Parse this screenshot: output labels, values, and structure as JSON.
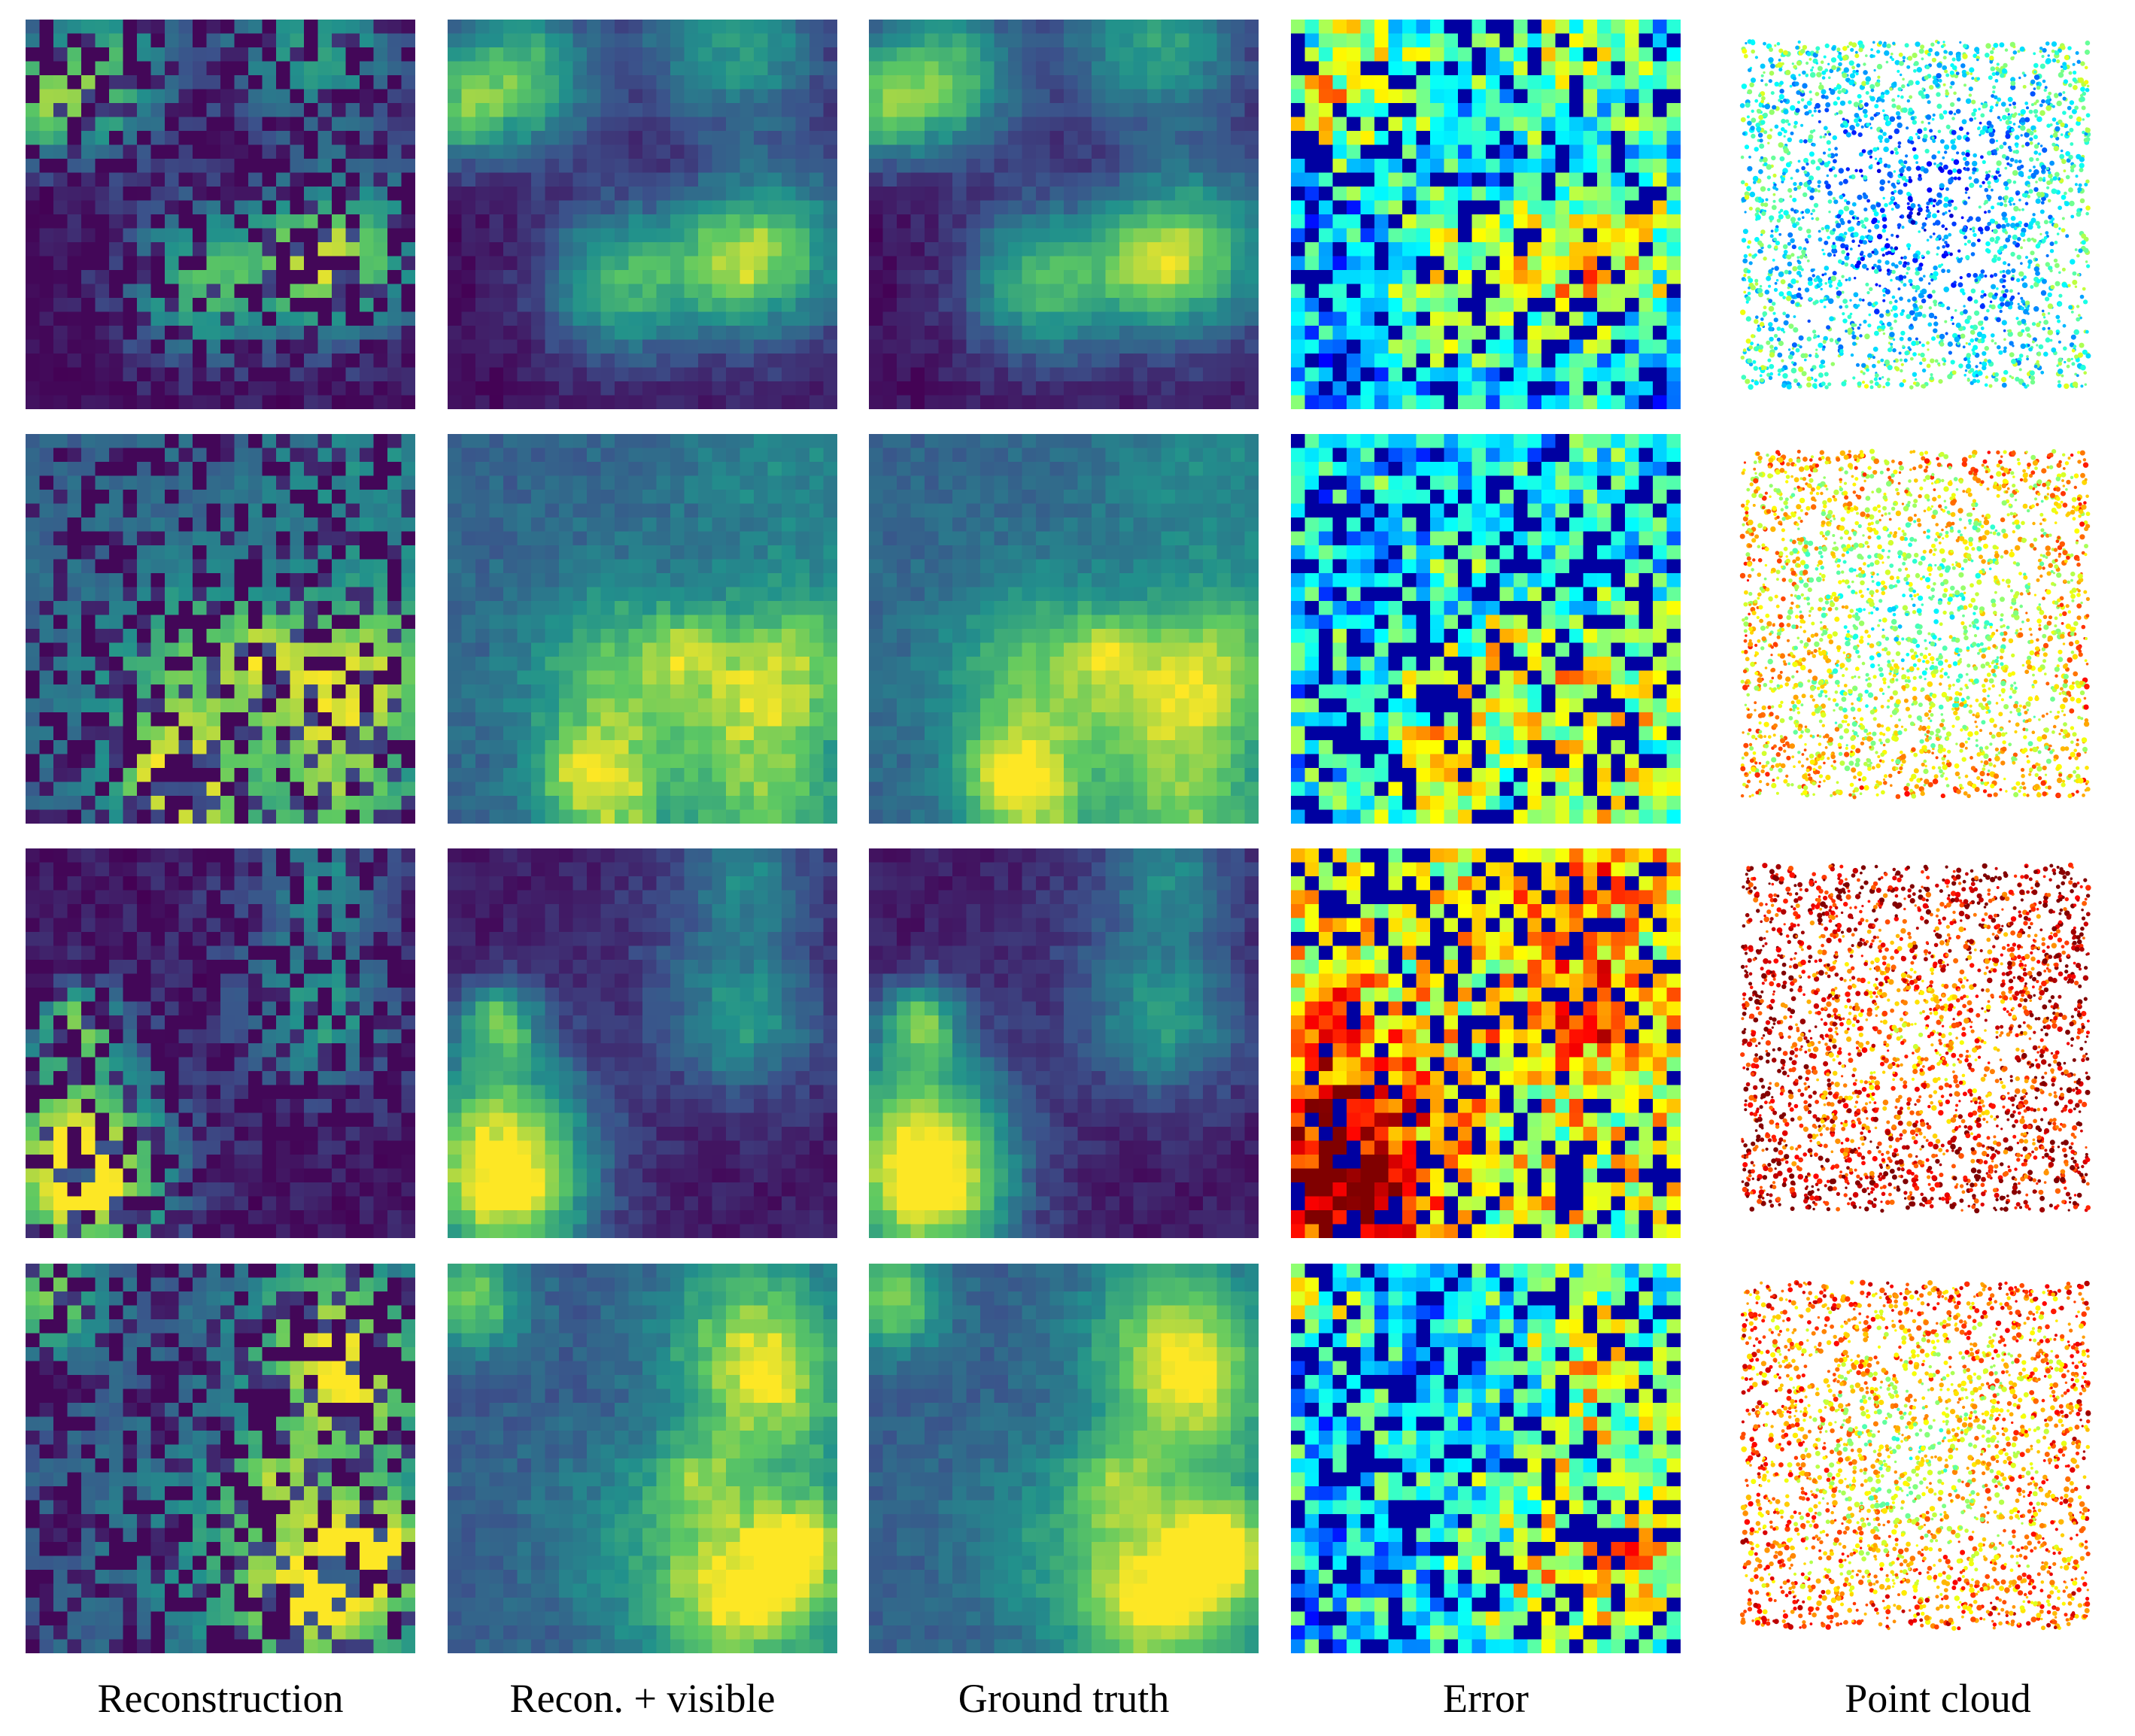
{
  "figure": {
    "columns": [
      {
        "key": "reconstruction",
        "caption": "Reconstruction",
        "colormap": "viridis"
      },
      {
        "key": "recon_visible",
        "caption": "Recon. + visible",
        "colormap": "viridis"
      },
      {
        "key": "ground_truth",
        "caption": "Ground truth",
        "colormap": "viridis"
      },
      {
        "key": "error",
        "caption": "Error",
        "colormap": "jet"
      },
      {
        "key": "point_cloud",
        "caption": "Point cloud",
        "colormap": "jet"
      }
    ],
    "rows": [
      {
        "example": 1,
        "background_level": 0.05,
        "error_level": 0.18,
        "cloud_tone": "blue"
      },
      {
        "example": 2,
        "background_level": 0.33,
        "error_level": 0.22,
        "cloud_tone": "blue-green"
      },
      {
        "example": 3,
        "background_level": 0.08,
        "error_level": 0.45,
        "cloud_tone": "yellow-red"
      },
      {
        "example": 4,
        "background_level": 0.3,
        "error_level": 0.2,
        "cloud_tone": "mixed"
      }
    ],
    "grid_cells_per_side": 28
  }
}
